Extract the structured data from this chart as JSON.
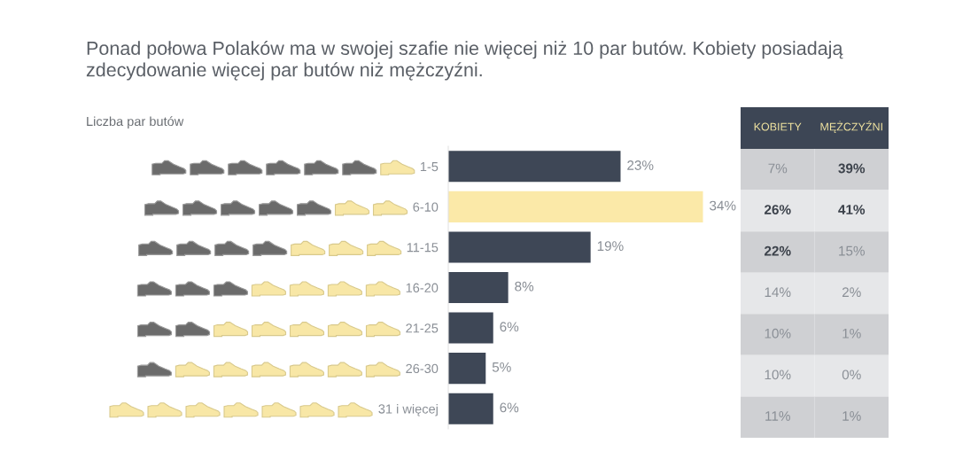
{
  "chart_data": [
    {
      "type": "bar",
      "orientation": "horizontal",
      "title": "Ponad połowa Polaków ma w swojej szafie nie więcej niż 10 par butów. Kobiety posiadają zdecydowanie więcej par butów niż mężczyźni.",
      "ylabel": "Liczba par butów",
      "categories": [
        "1-5",
        "6-10",
        "11-15",
        "16-20",
        "21-25",
        "26-30",
        "31 i więcej"
      ],
      "values": [
        23,
        34,
        19,
        8,
        6,
        5,
        6
      ],
      "colors": [
        "#3e4756",
        "#fbe9a8",
        "#3e4756",
        "#3e4756",
        "#3e4756",
        "#3e4756",
        "#3e4756"
      ],
      "value_labels": [
        "23%",
        "34%",
        "19%",
        "8%",
        "6%",
        "5%",
        "6%"
      ],
      "tick_labels": "y"
    },
    {
      "type": "heatmap",
      "categories": [
        "KOBIETY",
        "MĘŻCZYŹNI"
      ],
      "y_categories": [
        null,
        null,
        null,
        null,
        null,
        null,
        null
      ],
      "cells": [
        [
          7,
          39
        ],
        [
          26,
          41
        ],
        [
          22,
          15
        ],
        [
          14,
          2
        ],
        [
          10,
          1
        ],
        [
          10,
          0
        ],
        [
          11,
          1
        ]
      ],
      "cell_labels": [
        [
          "7%",
          "39%"
        ],
        [
          "26%",
          "41%"
        ],
        [
          "22%",
          "15%"
        ],
        [
          "14%",
          "2%"
        ],
        [
          "10%",
          "1%"
        ],
        [
          "10%",
          "0%"
        ],
        [
          "11%",
          "1%"
        ]
      ],
      "colors": [
        "#cfd0d3",
        "#e6e7e9",
        "#cfd0d3",
        "#e6e7e9",
        "#cfd0d3",
        "#e6e7e9",
        "#cfd0d3"
      ],
      "tick_labels": "x"
    }
  ]
}
